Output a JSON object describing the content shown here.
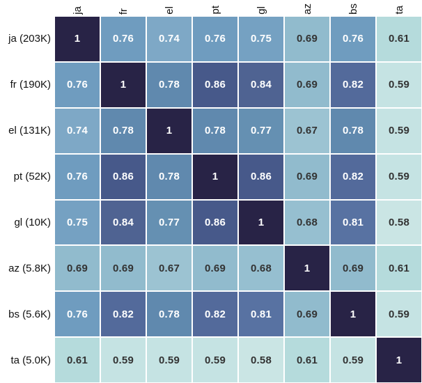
{
  "chart_data": {
    "type": "heatmap",
    "title": "",
    "columns": [
      "ja",
      "fr",
      "el",
      "pt",
      "gl",
      "az",
      "bs",
      "ta"
    ],
    "rows": [
      "ja (203K)",
      "fr (190K)",
      "el (131K)",
      "pt (52K)",
      "gl (10K)",
      "az (5.8K)",
      "bs (5.6K)",
      "ta (5.0K)"
    ],
    "values": [
      [
        1,
        0.76,
        0.74,
        0.76,
        0.75,
        0.69,
        0.76,
        0.61
      ],
      [
        0.76,
        1,
        0.78,
        0.86,
        0.84,
        0.69,
        0.82,
        0.59
      ],
      [
        0.74,
        0.78,
        1,
        0.78,
        0.77,
        0.67,
        0.78,
        0.59
      ],
      [
        0.76,
        0.86,
        0.78,
        1,
        0.86,
        0.69,
        0.82,
        0.59
      ],
      [
        0.75,
        0.84,
        0.77,
        0.86,
        1,
        0.68,
        0.81,
        0.58
      ],
      [
        0.69,
        0.69,
        0.67,
        0.69,
        0.68,
        1,
        0.69,
        0.61
      ],
      [
        0.76,
        0.82,
        0.78,
        0.82,
        0.81,
        0.69,
        1,
        0.59
      ],
      [
        0.61,
        0.59,
        0.59,
        0.59,
        0.58,
        0.61,
        0.59,
        1
      ]
    ],
    "value_range": [
      0.58,
      1
    ],
    "legend": "none",
    "grid_gap_color": "#ffffff",
    "color_scale": {
      "1": "#282346",
      "0.86": "#47598a",
      "0.84": "#4f6392",
      "0.82": "#536a9b",
      "0.81": "#5872a2",
      "0.78": "#6089ae",
      "0.77": "#6590b2",
      "0.76": "#6f9cbf",
      "0.75": "#75a1c2",
      "0.74": "#7ea8c6",
      "0.69": "#91bbcd",
      "0.68": "#96bfd0",
      "0.67": "#9cc3d2",
      "0.61": "#b5dbdc",
      "0.59": "#c5e3e3",
      "0.58": "#cae5e4"
    },
    "text_color_light": "#ffffff",
    "text_color_dark": "#333333",
    "white_text_threshold": 0.72
  }
}
